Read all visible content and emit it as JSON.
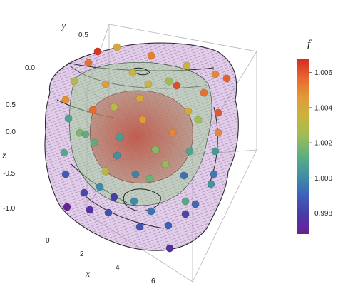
{
  "chart_data": {
    "type": "scatter",
    "subtype": "3d-isosurface-with-points",
    "axes": {
      "x": {
        "label": "x",
        "ticks": [
          "0",
          "2",
          "4",
          "6"
        ]
      },
      "y": {
        "label": "y",
        "ticks": [
          "0.0",
          "0.5"
        ]
      },
      "z": {
        "label": "z",
        "ticks": [
          "0.5",
          "0.0",
          "-0.5",
          "-1.0"
        ]
      }
    },
    "colorbar": {
      "title": "f",
      "range": [
        0.9968,
        1.0068
      ],
      "ticks": [
        "1.006",
        "1.004",
        "1.002",
        "1.000",
        "0.998"
      ],
      "tick_values": [
        1.006,
        1.004,
        1.002,
        1.0,
        0.998
      ],
      "colors": [
        "#d62a24",
        "#e8682d",
        "#e39a3a",
        "#c9b43e",
        "#9bbd58",
        "#5fae80",
        "#3f8fa6",
        "#3e62b8",
        "#4a3aa8",
        "#6a2090"
      ]
    },
    "isosurfaces": [
      {
        "name": "outer",
        "color": "#b98ad0"
      },
      {
        "name": "middle",
        "color": "#9ccb8e"
      },
      {
        "name": "inner",
        "color": "#c25b4f"
      }
    ],
    "points": [
      {
        "f": 1.0066
      },
      {
        "f": 1.004
      },
      {
        "f": 1.0052
      },
      {
        "f": 1.0036
      },
      {
        "f": 1.005
      },
      {
        "f": 1.0035
      },
      {
        "f": 1.0055
      },
      {
        "f": 1.0025
      },
      {
        "f": 1.003
      },
      {
        "f": 1.0045
      },
      {
        "f": 1.0058
      },
      {
        "f": 1.0048
      },
      {
        "f": 1.0056
      },
      {
        "f": 1.004
      },
      {
        "f": 1.006
      },
      {
        "f": 1.0046
      },
      {
        "f": 1.005
      },
      {
        "f": 1.003
      },
      {
        "f": 1.0018
      },
      {
        "f": 1.002
      },
      {
        "f": 1.0005
      },
      {
        "f": 1.001
      },
      {
        "f": 1.0002
      },
      {
        "f": 1.0008
      },
      {
        "f": 1.0012
      },
      {
        "f": 1.0015
      },
      {
        "f": 0.9988
      },
      {
        "f": 0.9984
      },
      {
        "f": 0.998
      },
      {
        "f": 0.9994
      },
      {
        "f": 0.9998
      },
      {
        "f": 1.0003
      },
      {
        "f": 0.997
      },
      {
        "f": 0.9976
      },
      {
        "f": 0.9985
      },
      {
        "f": 0.9995
      },
      {
        "f": 1.0
      },
      {
        "f": 1.001
      },
      {
        "f": 1.0062
      },
      {
        "f": 1.0055
      },
      {
        "f": 1.004
      },
      {
        "f": 1.005
      },
      {
        "f": 1.003
      },
      {
        "f": 1.0022
      },
      {
        "f": 1.0008
      },
      {
        "f": 0.9996
      },
      {
        "f": 0.999
      },
      {
        "f": 0.9982
      },
      {
        "f": 0.9975
      },
      {
        "f": 1.0012
      },
      {
        "f": 1.0025
      },
      {
        "f": 1.0035
      },
      {
        "f": 0.9992
      },
      {
        "f": 0.9986
      },
      {
        "f": 1.0
      },
      {
        "f": 1.0006
      }
    ]
  }
}
